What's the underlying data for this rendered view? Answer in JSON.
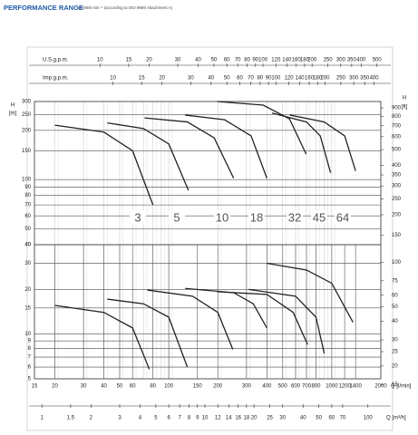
{
  "title": "PERFORMANCE RANGE",
  "subtitle": "at 2900 min⁻¹ (according to ISO 9906 Attachment A)",
  "chart_data": [
    {
      "type": "line",
      "ylabel": "H",
      "yunit": "[m]",
      "y2label": "H",
      "y2unit": "[ft]",
      "log": true,
      "grid": true,
      "xlim": [
        15,
        2000
      ],
      "ylim": [
        40,
        300
      ],
      "yticks": [
        40,
        50,
        60,
        70,
        80,
        90,
        100,
        150,
        200,
        250,
        300
      ],
      "y2lim": [
        131.2,
        984.3
      ],
      "y2ticks": [
        150,
        200,
        250,
        300,
        350,
        400,
        500,
        600,
        700,
        800,
        900
      ],
      "top_axes": [
        {
          "label": "U.S.g.p.m.",
          "lim": [
            3.963,
            528.3
          ],
          "ticks": [
            10,
            15,
            20,
            30,
            40,
            50,
            60,
            70,
            80,
            90,
            100,
            120,
            140,
            160,
            180,
            200,
            250,
            300,
            350,
            400,
            500
          ]
        },
        {
          "label": "Imp.g.p.m.",
          "lim": [
            3.299,
            439.9
          ],
          "ticks": [
            10,
            15,
            20,
            30,
            40,
            50,
            60,
            70,
            80,
            90,
            100,
            120,
            140,
            160,
            180,
            200,
            250,
            300,
            350,
            400
          ]
        }
      ],
      "models": [
        "3",
        "5",
        "10",
        "18",
        "32",
        "45",
        "64"
      ],
      "series": [
        {
          "color": "#222222",
          "x": [
            20,
            40,
            60,
            80
          ],
          "values": [
            215,
            195,
            150,
            70
          ]
        },
        {
          "color": "#222222",
          "x": [
            42,
            70,
            100,
            132
          ],
          "values": [
            222,
            205,
            165,
            86
          ]
        },
        {
          "color": "#222222",
          "x": [
            71,
            130,
            190,
            250
          ],
          "values": [
            238,
            225,
            180,
            102
          ]
        },
        {
          "color": "#222222",
          "x": [
            126,
            220,
            320,
            400
          ],
          "values": [
            248,
            232,
            185,
            102
          ]
        },
        {
          "color": "#222222",
          "x": [
            198,
            380,
            550,
            697
          ],
          "values": [
            300,
            285,
            235,
            143
          ]
        },
        {
          "color": "#222222",
          "x": [
            430,
            700,
            850,
            984
          ],
          "values": [
            255,
            225,
            185,
            110
          ]
        },
        {
          "color": "#222222",
          "x": [
            553,
            900,
            1200,
            1400
          ],
          "values": [
            248,
            225,
            185,
            113
          ]
        }
      ]
    },
    {
      "type": "line",
      "log": true,
      "grid": true,
      "xlabel": "Q [l/min]",
      "xlim": [
        15,
        2000
      ],
      "xticks": [
        15,
        20,
        30,
        40,
        50,
        60,
        80,
        100,
        150,
        200,
        300,
        400,
        500,
        600,
        700,
        800,
        1000,
        1200,
        1400,
        2000
      ],
      "x2label": "Q [m³/h]",
      "x2lim": [
        0.9,
        120
      ],
      "x2ticks": [
        1,
        1.5,
        2,
        3,
        4,
        5,
        6,
        7,
        8,
        9,
        10,
        12,
        14,
        16,
        18,
        20,
        25,
        30,
        40,
        50,
        60,
        70,
        100
      ],
      "ylim": [
        5,
        40
      ],
      "yticks": [
        5,
        6,
        7,
        8,
        9,
        10,
        15,
        20,
        30,
        40
      ],
      "y2lim": [
        16.4,
        131.2
      ],
      "y2ticks": [
        15,
        20,
        25,
        30,
        40,
        50,
        60,
        75,
        100
      ],
      "series": [
        {
          "color": "#222222",
          "x": [
            20,
            40,
            60,
            76
          ],
          "values": [
            15.6,
            14,
            11,
            5.8
          ]
        },
        {
          "color": "#222222",
          "x": [
            42,
            70,
            100,
            130
          ],
          "values": [
            17.2,
            16,
            13,
            6
          ]
        },
        {
          "color": "#222222",
          "x": [
            74,
            140,
            200,
            247
          ],
          "values": [
            19.8,
            18,
            14,
            7.9
          ]
        },
        {
          "color": "#222222",
          "x": [
            126,
            250,
            330,
            400
          ],
          "values": [
            20.3,
            19,
            16,
            11
          ]
        },
        {
          "color": "#222222",
          "x": [
            198,
            400,
            580,
            711
          ],
          "values": [
            19.3,
            18.5,
            14,
            8.5
          ]
        },
        {
          "color": "#222222",
          "x": [
            309,
            600,
            800,
            900
          ],
          "values": [
            20,
            18,
            13,
            7.4
          ]
        },
        {
          "color": "#222222",
          "x": [
            400,
            700,
            1000,
            1350
          ],
          "values": [
            30,
            27,
            22,
            12
          ]
        }
      ]
    }
  ]
}
